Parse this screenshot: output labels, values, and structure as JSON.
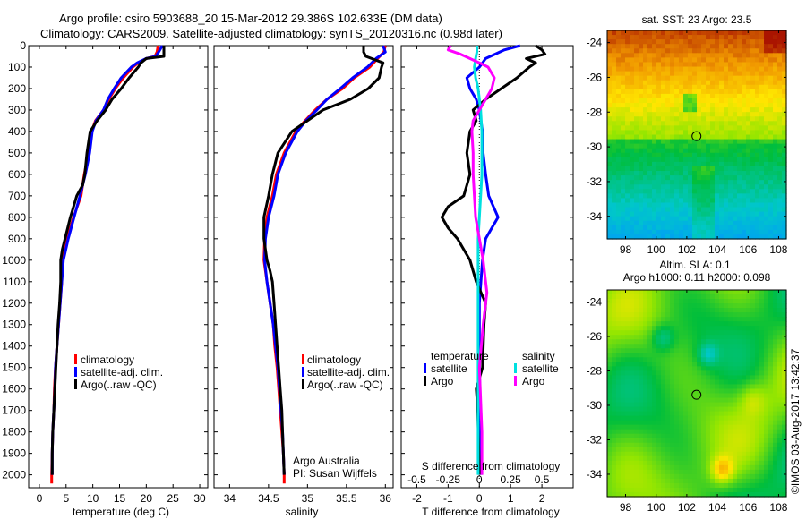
{
  "header": {
    "line1": "Argo profile: csiro 5903688_20 15-Mar-2012 29.386S 102.633E (DM data)",
    "line2": "Climatology: CARS2009. Satellite-adjusted climatology: synTS_20120316.nc (0.98d later)"
  },
  "colors": {
    "climatology": "#ff0000",
    "satellite": "#0000ff",
    "argo": "#000000",
    "sal_satellite": "#00e0e0",
    "sal_argo": "#ff00ff"
  },
  "credits": {
    "line1": "Argo Australia",
    "line2": "PI: Susan Wijffels",
    "stamp": "©IMOS 03-Aug-2017 13:42:37"
  },
  "chart_data": [
    {
      "type": "line",
      "id": "temperature",
      "xlabel": "temperature (deg C)",
      "ylabel": "",
      "xlim": [
        -2,
        31.5
      ],
      "ylim": [
        2060,
        0
      ],
      "xticks": [
        0,
        5,
        10,
        15,
        20,
        25,
        30
      ],
      "yticks": [
        0,
        100,
        200,
        300,
        400,
        500,
        600,
        700,
        800,
        900,
        1000,
        1100,
        1200,
        1300,
        1400,
        1500,
        1600,
        1700,
        1800,
        1900,
        2000
      ],
      "legend": {
        "position": "center",
        "entries": [
          "climatology",
          "satellite-adj. clim.",
          "Argo(..raw -QC)"
        ]
      },
      "series": [
        {
          "name": "climatology",
          "color_key": "climatology",
          "depth": [
            0,
            30,
            50,
            60,
            80,
            100,
            150,
            200,
            250,
            300,
            350,
            400,
            500,
            600,
            650,
            700,
            800,
            900,
            1000,
            1100,
            1200,
            1300,
            1400,
            1500,
            1600,
            1700,
            1800,
            1900,
            2000,
            2040
          ],
          "values": [
            22.2,
            22.0,
            21.6,
            20.0,
            18.5,
            17.5,
            15.7,
            14.2,
            13.0,
            12.0,
            10.5,
            9.8,
            9.2,
            8.4,
            8.1,
            7.8,
            6.4,
            5.2,
            4.3,
            4.2,
            3.9,
            3.6,
            3.3,
            3.0,
            2.8,
            2.7,
            2.5,
            2.4,
            2.3,
            2.3
          ]
        },
        {
          "name": "satellite-adj. clim.",
          "color_key": "satellite",
          "depth": [
            0,
            30,
            50,
            60,
            80,
            100,
            150,
            200,
            250,
            300,
            350,
            400,
            500,
            600,
            650,
            700,
            800,
            900,
            1000,
            1100,
            1200,
            1300,
            1400,
            1500,
            1600,
            1700,
            1800,
            1900,
            2000
          ],
          "values": [
            23.0,
            22.3,
            21.8,
            20.0,
            18.3,
            17.2,
            15.3,
            14.0,
            12.8,
            12.0,
            10.6,
            9.9,
            9.4,
            8.6,
            8.1,
            7.6,
            6.5,
            5.4,
            4.5,
            4.2,
            3.9,
            3.6,
            3.3,
            3.0,
            2.9,
            2.7,
            2.5,
            2.4,
            2.4
          ]
        },
        {
          "name": "Argo(..raw -QC)",
          "color_key": "argo",
          "depth": [
            0,
            30,
            50,
            60,
            80,
            100,
            150,
            200,
            250,
            300,
            350,
            400,
            500,
            600,
            650,
            700,
            800,
            900,
            950,
            1000,
            1100,
            1200,
            1300,
            1400,
            1500,
            1600,
            1700,
            1800,
            1900,
            2000
          ],
          "values": [
            23.3,
            23.3,
            23.3,
            20.0,
            19.0,
            18.5,
            16.8,
            15.3,
            13.6,
            12.4,
            10.8,
            9.5,
            8.9,
            8.5,
            8.1,
            7.0,
            5.8,
            4.8,
            4.3,
            4.0,
            4.0,
            3.8,
            3.5,
            3.3,
            3.1,
            2.9,
            2.7,
            2.5,
            2.4,
            2.4
          ]
        }
      ]
    },
    {
      "type": "line",
      "id": "salinity",
      "xlabel": "salinity",
      "xlim": [
        33.8,
        36.1
      ],
      "ylim": [
        2060,
        0
      ],
      "xticks": [
        34,
        34.5,
        35,
        35.5,
        36
      ],
      "legend": {
        "position": "center-right",
        "entries": [
          "climatology",
          "satellite-adj. clim.",
          "Argo(..raw -QC)"
        ]
      },
      "series": [
        {
          "name": "climatology",
          "color_key": "climatology",
          "depth": [
            0,
            30,
            60,
            100,
            150,
            200,
            250,
            300,
            350,
            400,
            500,
            600,
            700,
            800,
            900,
            1000,
            1100,
            1200,
            1300,
            1400,
            1500,
            1600,
            1700,
            1800,
            1900,
            2000,
            2040
          ],
          "values": [
            36.0,
            35.98,
            35.9,
            35.8,
            35.6,
            35.45,
            35.25,
            35.1,
            34.97,
            34.85,
            34.7,
            34.6,
            34.55,
            34.48,
            34.45,
            34.44,
            34.48,
            34.52,
            34.56,
            34.58,
            34.61,
            34.63,
            34.65,
            34.67,
            34.69,
            34.7,
            34.7
          ]
        },
        {
          "name": "satellite-adj. clim.",
          "color_key": "satellite",
          "depth": [
            0,
            30,
            60,
            100,
            150,
            200,
            250,
            300,
            350,
            400,
            500,
            600,
            700,
            800,
            900,
            1000,
            1100,
            1200,
            1300,
            1400,
            1500,
            1600,
            1700,
            1800,
            1900,
            2000
          ],
          "values": [
            35.97,
            36.0,
            35.88,
            35.77,
            35.58,
            35.42,
            35.25,
            35.12,
            34.98,
            34.87,
            34.72,
            34.62,
            34.57,
            34.5,
            34.46,
            34.45,
            34.48,
            34.52,
            34.56,
            34.59,
            34.62,
            34.64,
            34.66,
            34.68,
            34.69,
            34.7
          ]
        },
        {
          "name": "Argo(..raw -QC)",
          "color_key": "argo",
          "depth": [
            0,
            30,
            50,
            80,
            100,
            150,
            200,
            250,
            300,
            350,
            400,
            500,
            600,
            700,
            800,
            900,
            1000,
            1050,
            1100,
            1200,
            1300,
            1400,
            1500,
            1600,
            1700,
            1800,
            1900,
            2000
          ],
          "values": [
            35.72,
            35.72,
            35.75,
            35.97,
            35.95,
            35.92,
            35.78,
            35.55,
            35.2,
            35.0,
            34.8,
            34.62,
            34.55,
            34.5,
            34.44,
            34.44,
            34.48,
            34.52,
            34.55,
            34.57,
            34.59,
            34.61,
            34.63,
            34.65,
            34.67,
            34.68,
            34.69,
            34.7
          ]
        }
      ]
    },
    {
      "type": "line",
      "id": "difference",
      "xlabel": "T difference from climatology",
      "x2label": "S difference from climatology",
      "xlim": [
        -2.5,
        3.0
      ],
      "x2lim": [
        -0.625,
        0.75
      ],
      "ylim": [
        2060,
        0
      ],
      "xticks": [
        -2,
        -1,
        0,
        1,
        2
      ],
      "x2ticks": [
        -0.5,
        -0.25,
        0,
        0.25,
        0.5
      ],
      "x2ticklabels": [
        "-0.5",
        "-0.25",
        "0",
        "0.25",
        "0.5"
      ],
      "legend": {
        "position": "center",
        "groups": [
          "temperature",
          "salinity"
        ],
        "entries": [
          "satellite",
          "Argo",
          "satellite",
          "Argo"
        ]
      },
      "series": [
        {
          "name": "T satellite",
          "group": "temperature",
          "color_key": "satellite",
          "axis": "T",
          "depth": [
            0,
            20,
            40,
            60,
            80,
            100,
            150,
            200,
            250,
            300,
            350,
            400,
            500,
            600,
            700,
            800,
            850,
            900,
            1000,
            1100,
            1200,
            1500,
            1800,
            2000
          ],
          "values": [
            1.3,
            0.8,
            0.5,
            0.2,
            0.1,
            0.0,
            -0.4,
            -0.3,
            -0.1,
            0.0,
            0.05,
            0.1,
            0.12,
            0.2,
            0.3,
            0.6,
            0.4,
            0.2,
            0.1,
            0.05,
            0.0,
            0.0,
            0.05,
            0.05
          ]
        },
        {
          "name": "T Argo",
          "group": "temperature",
          "color_key": "argo",
          "axis": "T",
          "depth": [
            0,
            20,
            40,
            60,
            80,
            100,
            150,
            200,
            250,
            300,
            350,
            400,
            500,
            600,
            700,
            750,
            800,
            850,
            900,
            1000,
            1100,
            1200,
            1300,
            1500,
            1600,
            1700,
            2000
          ],
          "values": [
            1.8,
            2.0,
            2.1,
            1.5,
            1.8,
            1.6,
            1.2,
            0.7,
            0.2,
            -0.2,
            -0.1,
            -0.3,
            -0.4,
            -0.3,
            -0.5,
            -1.0,
            -1.2,
            -1.0,
            -0.7,
            -0.3,
            -0.1,
            0.2,
            0.15,
            0.1,
            -0.1,
            -0.05,
            0.0
          ]
        },
        {
          "name": "S satellite",
          "group": "salinity",
          "color_key": "sal_satellite",
          "axis": "S",
          "depth": [
            0,
            30,
            60,
            100,
            150,
            200,
            300,
            400,
            500,
            600,
            700,
            800,
            900,
            1000,
            1200,
            1500,
            2000
          ],
          "values": [
            -0.02,
            -0.02,
            -0.03,
            -0.04,
            -0.03,
            -0.01,
            0.01,
            0.02,
            0.02,
            0.02,
            0.01,
            0.0,
            -0.01,
            -0.01,
            -0.01,
            -0.01,
            -0.01
          ]
        },
        {
          "name": "S Argo",
          "group": "salinity",
          "color_key": "sal_argo",
          "axis": "S",
          "depth": [
            0,
            20,
            40,
            80,
            100,
            150,
            200,
            250,
            300,
            350,
            400,
            500,
            600,
            700,
            800,
            900,
            1000,
            1100,
            1150,
            1200,
            1300,
            1500,
            1800,
            2000
          ],
          "values": [
            -0.23,
            -0.25,
            -0.15,
            0.0,
            0.07,
            0.12,
            0.1,
            0.05,
            0.0,
            -0.05,
            -0.06,
            -0.05,
            -0.05,
            -0.04,
            -0.03,
            0.0,
            0.03,
            0.05,
            0.06,
            0.05,
            0.03,
            0.0,
            0.02,
            0.02
          ]
        }
      ]
    },
    {
      "type": "heatmap",
      "id": "sst_map",
      "title": "sat. SST: 23 Argo: 23.5",
      "xlim": [
        96.8,
        108.5
      ],
      "ylim": [
        -35.3,
        -23.3
      ],
      "xticks": [
        98,
        100,
        102,
        104,
        106,
        108
      ],
      "yticks": [
        -24,
        -26,
        -28,
        -30,
        -32,
        -34
      ],
      "marker": {
        "lon": 102.633,
        "lat": -29.386
      }
    },
    {
      "type": "heatmap",
      "id": "sla_map",
      "title": "Altim. SLA: 0.1",
      "subtitle": "Argo h1000: 0.11 h2000: 0.098",
      "xlim": [
        96.8,
        108.5
      ],
      "ylim": [
        -35.3,
        -23.3
      ],
      "xticks": [
        98,
        100,
        102,
        104,
        106,
        108
      ],
      "yticks": [
        -24,
        -26,
        -28,
        -30,
        -32,
        -34
      ],
      "marker": {
        "lon": 102.633,
        "lat": -29.386
      }
    }
  ]
}
